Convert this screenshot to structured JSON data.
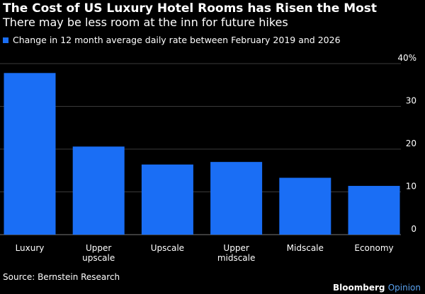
{
  "header": {
    "title": "The Cost of US Luxury Hotel Rooms has Risen the Most",
    "subtitle": "There may be less room at the inn for future hikes"
  },
  "legend": {
    "label": "Change in 12 month average daily rate between February 2019 and 2026",
    "color": "#1a6ef5"
  },
  "footer": {
    "source": "Source: Bernstein Research",
    "brand_main": "Bloomberg",
    "brand_accent": "Opinion"
  },
  "chart_data": {
    "type": "bar",
    "title": "The Cost of US Luxury Hotel Rooms has Risen the Most",
    "subtitle": "There may be less room at the inn for future hikes",
    "categories": [
      [
        "Luxury"
      ],
      [
        "Upper",
        "upscale"
      ],
      [
        "Upscale"
      ],
      [
        "Upper",
        "midscale"
      ],
      [
        "Midscale"
      ],
      [
        "Economy"
      ]
    ],
    "category_names": [
      "Luxury",
      "Upper upscale",
      "Upscale",
      "Upper midscale",
      "Midscale",
      "Economy"
    ],
    "series": [
      {
        "name": "Change in 12 month average daily rate between February 2019 and 2026",
        "values": [
          37.8,
          20.6,
          16.4,
          17.0,
          13.3,
          11.4
        ]
      }
    ],
    "ylim": [
      0,
      40
    ],
    "yticks": [
      0,
      10,
      20,
      30,
      40
    ],
    "ytick_labels": [
      "0",
      "10",
      "20",
      "30",
      "40%"
    ],
    "ylabel": "",
    "xlabel": "",
    "grid": true,
    "legend_position": "top-left",
    "bar_color": "#1a6ef5"
  }
}
